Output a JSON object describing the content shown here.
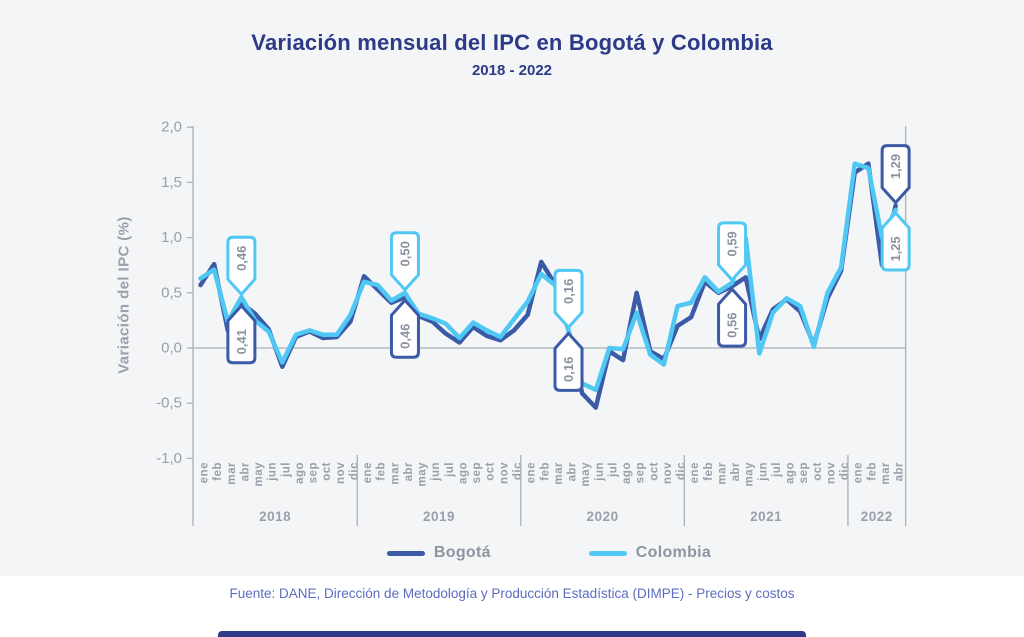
{
  "title": "Variación mensual del IPC en Bogotá y Colombia",
  "subtitle": "2018 - 2022",
  "footer": "Fuente: DANE, Dirección de Metodología y Producción Estadística (DIMPE) - Precios y costos",
  "colors": {
    "background": "#f4f5f7",
    "title": "#2c3a87",
    "bogota": "#3b5ba7",
    "colombia": "#4fc8f4",
    "axis_text": "#98a0ab",
    "grid": "#aab0b8",
    "callout_text": "#8a92a0",
    "legend_text": "#8d95a1",
    "footer_text": "#5d6cc0",
    "bottom_bar": "#2c3a87"
  },
  "chart_data": {
    "type": "line",
    "title": "Variación mensual del IPC en Bogotá y Colombia",
    "subtitle": "2018 - 2022",
    "ylabel": "Variación del IPC (%)",
    "ylim": [
      -1.0,
      2.0
    ],
    "grid": false,
    "legend_position": "bottom",
    "y_ticks": [
      {
        "label": "2,0",
        "value": 2.0
      },
      {
        "label": "1,5",
        "value": 1.5
      },
      {
        "label": "1,0",
        "value": 1.0
      },
      {
        "label": "0,5",
        "value": 0.5
      },
      {
        "label": "0,0",
        "value": 0.0
      },
      {
        "label": "-0,5",
        "value": -0.5
      },
      {
        "label": "-1,0",
        "value": -1.0
      }
    ],
    "months": [
      "ene",
      "feb",
      "mar",
      "abr",
      "may",
      "jun",
      "jul",
      "ago",
      "sep",
      "oct",
      "nov",
      "dic"
    ],
    "year_groups": [
      {
        "year": "2018",
        "n": 12
      },
      {
        "year": "2019",
        "n": 12
      },
      {
        "year": "2020",
        "n": 12
      },
      {
        "year": "2021",
        "n": 12
      },
      {
        "year": "2022",
        "n": 4
      }
    ],
    "series": [
      {
        "name": "Bogotá",
        "color": "#3b5ba7",
        "values": [
          0.57,
          0.76,
          0.16,
          0.41,
          0.31,
          0.17,
          -0.17,
          0.1,
          0.15,
          0.09,
          0.1,
          0.24,
          0.65,
          0.53,
          0.41,
          0.46,
          0.29,
          0.24,
          0.13,
          0.05,
          0.19,
          0.11,
          0.07,
          0.16,
          0.3,
          0.78,
          0.58,
          0.16,
          -0.41,
          -0.54,
          -0.03,
          -0.11,
          0.5,
          -0.03,
          -0.1,
          0.2,
          0.28,
          0.6,
          0.5,
          0.56,
          0.64,
          0.08,
          0.35,
          0.44,
          0.33,
          0.03,
          0.45,
          0.7,
          1.59,
          1.67,
          0.75,
          1.29
        ]
      },
      {
        "name": "Colombia",
        "color": "#4fc8f4",
        "values": [
          0.63,
          0.71,
          0.24,
          0.46,
          0.25,
          0.15,
          -0.13,
          0.12,
          0.16,
          0.12,
          0.12,
          0.3,
          0.6,
          0.57,
          0.43,
          0.5,
          0.31,
          0.27,
          0.22,
          0.09,
          0.23,
          0.16,
          0.1,
          0.26,
          0.42,
          0.67,
          0.57,
          0.16,
          -0.32,
          -0.38,
          0.0,
          -0.01,
          0.32,
          -0.06,
          -0.15,
          0.38,
          0.41,
          0.64,
          0.51,
          0.59,
          1.0,
          -0.05,
          0.32,
          0.45,
          0.38,
          0.01,
          0.5,
          0.73,
          1.67,
          1.63,
          1.0,
          1.25
        ]
      }
    ],
    "callouts": [
      {
        "label": "0,46",
        "series": "Colombia",
        "month_index": 3,
        "value": 0.46,
        "dir": "down"
      },
      {
        "label": "0,41",
        "series": "Bogotá",
        "month_index": 3,
        "value": 0.41,
        "dir": "up"
      },
      {
        "label": "0,50",
        "series": "Colombia",
        "month_index": 15,
        "value": 0.5,
        "dir": "down"
      },
      {
        "label": "0,46",
        "series": "Bogotá",
        "month_index": 15,
        "value": 0.46,
        "dir": "up"
      },
      {
        "label": "0,16",
        "series": "Colombia",
        "month_index": 27,
        "value": 0.16,
        "dir": "down"
      },
      {
        "label": "0,16",
        "series": "Bogotá",
        "month_index": 27,
        "value": 0.16,
        "dir": "up"
      },
      {
        "label": "0,59",
        "series": "Colombia",
        "month_index": 39,
        "value": 0.59,
        "dir": "down"
      },
      {
        "label": "0,56",
        "series": "Bogotá",
        "month_index": 39,
        "value": 0.56,
        "dir": "up"
      },
      {
        "label": "1,29",
        "series": "Bogotá",
        "month_index": 51,
        "value": 1.29,
        "dir": "down"
      },
      {
        "label": "1,25",
        "series": "Colombia",
        "month_index": 51,
        "value": 1.25,
        "dir": "up"
      }
    ]
  }
}
